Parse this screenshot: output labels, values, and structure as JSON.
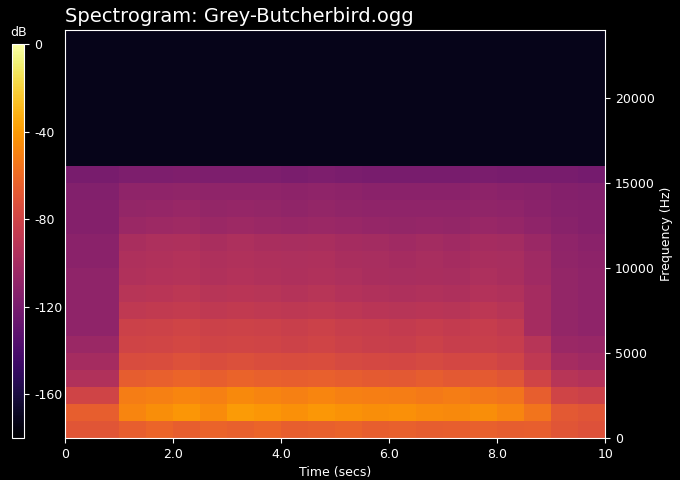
{
  "chart_data": {
    "type": "heatmap",
    "title": "Spectrogram: Grey-Butcherbird.ogg",
    "x_label": "Time (secs)",
    "y_label": "Frequency (Hz)",
    "xlim": [
      0,
      10
    ],
    "xticks": [
      0,
      2.0,
      4.0,
      6.0,
      8.0,
      10
    ],
    "ylim": [
      0,
      24000
    ],
    "yticks": [
      0,
      5000,
      10000,
      15000,
      20000
    ],
    "x_edges": [
      0,
      0.5,
      1.0,
      1.5,
      2.0,
      2.5,
      3.0,
      3.5,
      4.0,
      4.5,
      5.0,
      5.5,
      6.0,
      6.5,
      7.0,
      7.5,
      8.0,
      8.5,
      9.0,
      9.5,
      10
    ],
    "y_edges": [
      0,
      1000,
      2000,
      3000,
      4000,
      5000,
      6000,
      7000,
      8000,
      9000,
      10000,
      11000,
      12000,
      13000,
      14000,
      15000,
      16000,
      17000,
      18000,
      19000,
      20000,
      21000,
      22000,
      23000,
      24000
    ],
    "cells": [
      [
        -70,
        -70,
        -65,
        -62,
        -65,
        -63,
        -64,
        -62,
        -65,
        -64,
        -63,
        -65,
        -64,
        -66,
        -65,
        -64,
        -66,
        -65,
        -70,
        -72
      ],
      [
        -65,
        -65,
        -48,
        -45,
        -42,
        -46,
        -40,
        -42,
        -44,
        -41,
        -43,
        -45,
        -44,
        -46,
        -47,
        -45,
        -48,
        -55,
        -68,
        -70
      ],
      [
        -80,
        -80,
        -52,
        -50,
        -48,
        -50,
        -47,
        -49,
        -50,
        -48,
        -50,
        -51,
        -52,
        -53,
        -52,
        -54,
        -55,
        -65,
        -80,
        -82
      ],
      [
        -95,
        -95,
        -66,
        -64,
        -62,
        -65,
        -63,
        -64,
        -65,
        -64,
        -66,
        -67,
        -68,
        -66,
        -68,
        -67,
        -70,
        -80,
        -92,
        -94
      ],
      [
        -100,
        -100,
        -75,
        -74,
        -72,
        -74,
        -73,
        -74,
        -75,
        -74,
        -76,
        -77,
        -78,
        -76,
        -78,
        -77,
        -80,
        -88,
        -100,
        -102
      ],
      [
        -105,
        -105,
        -80,
        -79,
        -78,
        -80,
        -79,
        -80,
        -81,
        -80,
        -82,
        -83,
        -84,
        -82,
        -84,
        -83,
        -85,
        -92,
        -105,
        -106
      ],
      [
        -110,
        -110,
        -82,
        -81,
        -80,
        -82,
        -81,
        -82,
        -83,
        -82,
        -84,
        -85,
        -86,
        -85,
        -86,
        -85,
        -87,
        -100,
        -108,
        -110
      ],
      [
        -110,
        -110,
        -88,
        -87,
        -86,
        -88,
        -87,
        -88,
        -89,
        -88,
        -90,
        -91,
        -92,
        -91,
        -92,
        -90,
        -92,
        -100,
        -108,
        -110
      ],
      [
        -110,
        -110,
        -92,
        -91,
        -90,
        -92,
        -91,
        -92,
        -93,
        -92,
        -94,
        -95,
        -96,
        -95,
        -96,
        -94,
        -95,
        -100,
        -108,
        -110
      ],
      [
        -110,
        -110,
        -95,
        -94,
        -93,
        -95,
        -94,
        -95,
        -96,
        -95,
        -97,
        -98,
        -99,
        -98,
        -99,
        -97,
        -98,
        -102,
        -108,
        -110
      ],
      [
        -112,
        -112,
        -96,
        -95,
        -94,
        -96,
        -95,
        -96,
        -97,
        -96,
        -98,
        -99,
        -100,
        -99,
        -100,
        -98,
        -99,
        -103,
        -109,
        -111
      ],
      [
        -112,
        -112,
        -98,
        -97,
        -96,
        -98,
        -97,
        -98,
        -99,
        -98,
        -100,
        -101,
        -102,
        -101,
        -102,
        -100,
        -101,
        -105,
        -110,
        -112
      ],
      [
        -115,
        -115,
        -105,
        -104,
        -103,
        -105,
        -104,
        -105,
        -106,
        -105,
        -106,
        -107,
        -108,
        -107,
        -108,
        -106,
        -107,
        -110,
        -113,
        -115
      ],
      [
        -115,
        -115,
        -108,
        -107,
        -106,
        -108,
        -107,
        -108,
        -109,
        -108,
        -109,
        -110,
        -110,
        -110,
        -110,
        -109,
        -110,
        -112,
        -114,
        -115
      ],
      [
        -116,
        -116,
        -110,
        -110,
        -109,
        -110,
        -110,
        -110,
        -111,
        -110,
        -111,
        -112,
        -112,
        -112,
        -112,
        -111,
        -112,
        -113,
        -115,
        -116
      ],
      [
        -120,
        -120,
        -118,
        -118,
        -117,
        -118,
        -118,
        -118,
        -119,
        -118,
        -119,
        -120,
        -120,
        -120,
        -120,
        -119,
        -120,
        -120,
        -120,
        -121
      ],
      [
        -172,
        -172,
        -172,
        -172,
        -172,
        -172,
        -172,
        -172,
        -172,
        -172,
        -172,
        -172,
        -172,
        -172,
        -172,
        -172,
        -172,
        -172,
        -172,
        -172
      ],
      [
        -172,
        -172,
        -172,
        -172,
        -172,
        -172,
        -172,
        -172,
        -172,
        -172,
        -172,
        -172,
        -172,
        -172,
        -172,
        -172,
        -172,
        -172,
        -172,
        -172
      ],
      [
        -172,
        -172,
        -172,
        -172,
        -172,
        -172,
        -172,
        -172,
        -172,
        -172,
        -172,
        -172,
        -172,
        -172,
        -172,
        -172,
        -172,
        -172,
        -172,
        -172
      ],
      [
        -172,
        -172,
        -172,
        -172,
        -172,
        -172,
        -172,
        -172,
        -172,
        -172,
        -172,
        -172,
        -172,
        -172,
        -172,
        -172,
        -172,
        -172,
        -172,
        -172
      ],
      [
        -172,
        -172,
        -172,
        -172,
        -172,
        -172,
        -172,
        -172,
        -172,
        -172,
        -172,
        -172,
        -172,
        -172,
        -172,
        -172,
        -172,
        -172,
        -172,
        -172
      ],
      [
        -172,
        -172,
        -172,
        -172,
        -172,
        -172,
        -172,
        -172,
        -172,
        -172,
        -172,
        -172,
        -172,
        -172,
        -172,
        -172,
        -172,
        -172,
        -172,
        -172
      ],
      [
        -172,
        -172,
        -172,
        -172,
        -172,
        -172,
        -172,
        -172,
        -172,
        -172,
        -172,
        -172,
        -172,
        -172,
        -172,
        -172,
        -172,
        -172,
        -172,
        -172
      ],
      [
        -172,
        -172,
        -172,
        -172,
        -172,
        -172,
        -172,
        -172,
        -172,
        -172,
        -172,
        -172,
        -172,
        -172,
        -172,
        -172,
        -172,
        -172,
        -172,
        -172
      ]
    ],
    "colorbar_label": "dB",
    "colorbar_lim": [
      -180,
      0
    ],
    "colorbar_ticks": [
      0,
      -40,
      -80,
      -120,
      -160
    ]
  }
}
